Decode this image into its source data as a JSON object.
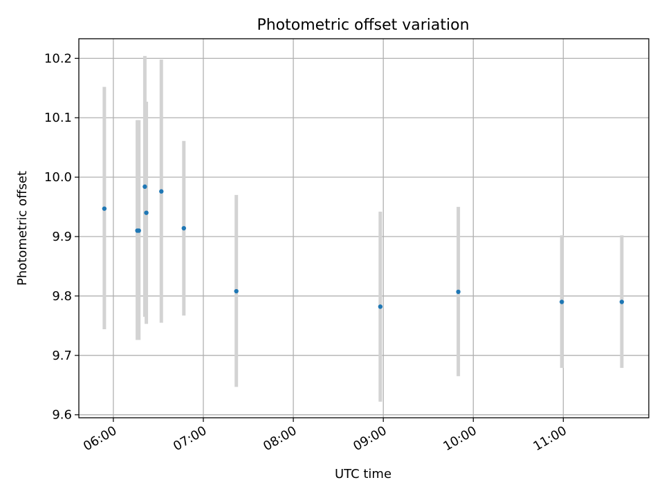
{
  "chart_data": {
    "type": "scatter",
    "title": "Photometric offset variation",
    "xlabel": "UTC time",
    "ylabel": "Photometric offset",
    "x_ticks": [
      "06:00",
      "07:00",
      "08:00",
      "09:00",
      "10:00",
      "11:00"
    ],
    "y_ticks": [
      "9.6",
      "9.7",
      "9.8",
      "9.9",
      "10.0",
      "10.1",
      "10.2"
    ],
    "xlim": [
      "05:37",
      "11:57"
    ],
    "ylim": [
      9.595,
      10.233
    ],
    "grid": true,
    "points": [
      {
        "x": "05:54",
        "y": 9.947,
        "err_low": 9.744,
        "err_high": 10.152
      },
      {
        "x": "06:16",
        "y": 9.91,
        "err_low": 9.726,
        "err_high": 10.096
      },
      {
        "x": "06:17",
        "y": 9.91,
        "err_low": 9.726,
        "err_high": 10.096
      },
      {
        "x": "06:21",
        "y": 9.984,
        "err_low": 9.765,
        "err_high": 10.204
      },
      {
        "x": "06:22",
        "y": 9.94,
        "err_low": 9.753,
        "err_high": 10.127
      },
      {
        "x": "06:32",
        "y": 9.976,
        "err_low": 9.755,
        "err_high": 10.198
      },
      {
        "x": "06:47",
        "y": 9.914,
        "err_low": 9.767,
        "err_high": 10.061
      },
      {
        "x": "07:22",
        "y": 9.808,
        "err_low": 9.647,
        "err_high": 9.97
      },
      {
        "x": "08:58",
        "y": 9.782,
        "err_low": 9.622,
        "err_high": 9.942
      },
      {
        "x": "09:50",
        "y": 9.807,
        "err_low": 9.665,
        "err_high": 9.95
      },
      {
        "x": "10:59",
        "y": 9.79,
        "err_low": 9.679,
        "err_high": 9.902
      },
      {
        "x": "11:39",
        "y": 9.79,
        "err_low": 9.679,
        "err_high": 9.902
      }
    ],
    "colors": {
      "marker": "#1f77b4",
      "error_bar": "#d3d3d3",
      "grid": "#b0b0b0",
      "axes": "#000000"
    }
  }
}
